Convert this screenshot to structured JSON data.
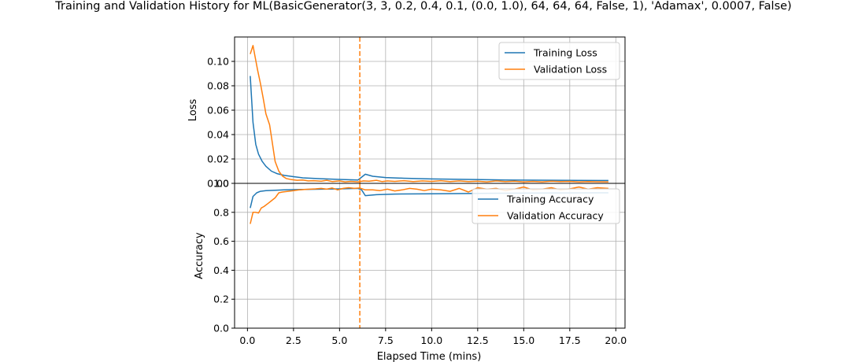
{
  "title": "Training and Validation History for ML(BasicGenerator(3, 3, 0.2, 0.4, 0.1, (0.0, 1.0), 64, 64, 64, False, 1), 'Adamax', 0.0007, False)",
  "colors": {
    "training": "#1f77b4",
    "validation": "#ff7f0e",
    "grid": "#b0b0b0",
    "marker": "#ff7f0e"
  },
  "chart_data": [
    {
      "type": "line",
      "panel": "loss",
      "title": "Training and Validation History for ML(BasicGenerator(3, 3, 0.2, 0.4, 0.1, (0.0, 1.0), 64, 64, 64, False, 1), 'Adamax', 0.0007, False)",
      "xlabel": "",
      "ylabel": "Loss",
      "xlim": [
        -0.7,
        20.5
      ],
      "ylim": [
        0.0,
        0.12
      ],
      "yticks": [
        0.0,
        0.02,
        0.04,
        0.06,
        0.08,
        0.1
      ],
      "ytick_labels": [
        "0.00",
        "0.02",
        "0.04",
        "0.06",
        "0.08",
        "0.10"
      ],
      "grid": true,
      "legend_position": "top-right",
      "vline_x": 6.1,
      "series": [
        {
          "name": "Training Loss",
          "x": [
            0.15,
            0.3,
            0.45,
            0.6,
            0.8,
            1.0,
            1.3,
            1.6,
            2.0,
            2.5,
            3.0,
            4.0,
            5.0,
            6.0,
            6.15,
            6.4,
            6.8,
            7.5,
            8.5,
            10.0,
            12.0,
            14.0,
            16.0,
            18.0,
            19.6
          ],
          "y": [
            0.088,
            0.05,
            0.032,
            0.024,
            0.018,
            0.014,
            0.01,
            0.008,
            0.0065,
            0.0055,
            0.0045,
            0.0038,
            0.0032,
            0.0028,
            0.0045,
            0.0075,
            0.0058,
            0.0048,
            0.0042,
            0.0036,
            0.0032,
            0.0028,
            0.0026,
            0.0024,
            0.0023
          ]
        },
        {
          "name": "Validation Loss",
          "x": [
            0.15,
            0.3,
            0.4,
            0.55,
            0.7,
            0.85,
            1.0,
            1.2,
            1.35,
            1.5,
            1.7,
            1.9,
            2.1,
            2.4,
            2.7,
            3.0,
            3.3,
            3.6,
            4.0,
            4.3,
            4.6,
            5.0,
            5.3,
            5.6,
            6.0,
            6.3,
            6.6,
            7.0,
            7.3,
            7.6,
            8.0,
            8.5,
            9.0,
            9.5,
            10.0,
            10.5,
            11.0,
            11.5,
            12.0,
            12.5,
            13.0,
            13.5,
            14.0,
            14.5,
            15.0,
            15.5,
            16.0,
            16.5,
            17.0,
            17.5,
            18.0,
            18.5,
            19.0,
            19.6
          ],
          "y": [
            0.106,
            0.113,
            0.105,
            0.093,
            0.082,
            0.07,
            0.057,
            0.048,
            0.033,
            0.018,
            0.01,
            0.006,
            0.004,
            0.003,
            0.0025,
            0.0028,
            0.002,
            0.0022,
            0.0018,
            0.0025,
            0.0015,
            0.002,
            0.0012,
            0.0016,
            0.0012,
            0.002,
            0.0018,
            0.0025,
            0.0015,
            0.002,
            0.0016,
            0.0022,
            0.0014,
            0.002,
            0.0016,
            0.0022,
            0.0015,
            0.002,
            0.0014,
            0.0018,
            0.0012,
            0.002,
            0.0015,
            0.0018,
            0.0012,
            0.0016,
            0.0012,
            0.0018,
            0.0014,
            0.0016,
            0.0012,
            0.0015,
            0.0013,
            0.0012
          ]
        }
      ]
    },
    {
      "type": "line",
      "panel": "accuracy",
      "xlabel": "Elapsed Time (mins)",
      "ylabel": "Accuracy",
      "xlim": [
        -0.7,
        20.5
      ],
      "ylim": [
        0.0,
        1.0
      ],
      "xticks": [
        0.0,
        2.5,
        5.0,
        7.5,
        10.0,
        12.5,
        15.0,
        17.5,
        20.0
      ],
      "xtick_labels": [
        "0.0",
        "2.5",
        "5.0",
        "7.5",
        "10.0",
        "12.5",
        "15.0",
        "17.5",
        "20.0"
      ],
      "yticks": [
        0.0,
        0.2,
        0.4,
        0.6,
        0.8,
        1.0
      ],
      "ytick_labels": [
        "0.0",
        "0.2",
        "0.4",
        "0.6",
        "0.8",
        "1.0"
      ],
      "grid": true,
      "legend_position": "top-right",
      "vline_x": 6.1,
      "series": [
        {
          "name": "Training Accuracy",
          "x": [
            0.15,
            0.3,
            0.5,
            0.7,
            1.0,
            1.5,
            2.0,
            3.0,
            4.0,
            5.0,
            6.0,
            6.2,
            6.4,
            7.0,
            8.0,
            10.0,
            12.0,
            14.0,
            16.0,
            18.0,
            19.6
          ],
          "y": [
            0.83,
            0.91,
            0.935,
            0.945,
            0.95,
            0.952,
            0.955,
            0.958,
            0.96,
            0.962,
            0.965,
            0.955,
            0.915,
            0.922,
            0.926,
            0.928,
            0.93,
            0.932,
            0.933,
            0.934,
            0.935
          ]
        },
        {
          "name": "Validation Accuracy",
          "x": [
            0.15,
            0.3,
            0.45,
            0.6,
            0.75,
            0.9,
            1.1,
            1.3,
            1.5,
            1.7,
            1.9,
            2.2,
            2.5,
            2.8,
            3.1,
            3.4,
            3.7,
            4.0,
            4.3,
            4.6,
            4.9,
            5.2,
            5.5,
            5.8,
            6.1,
            6.4,
            6.8,
            7.2,
            7.6,
            8.0,
            8.4,
            8.8,
            9.2,
            9.6,
            10.0,
            10.5,
            11.0,
            11.5,
            12.0,
            12.5,
            13.0,
            13.5,
            14.0,
            14.5,
            15.0,
            15.5,
            16.0,
            16.5,
            17.0,
            17.5,
            18.0,
            18.5,
            19.0,
            19.6
          ],
          "y": [
            0.72,
            0.8,
            0.8,
            0.795,
            0.83,
            0.84,
            0.86,
            0.88,
            0.9,
            0.935,
            0.94,
            0.945,
            0.95,
            0.955,
            0.958,
            0.96,
            0.962,
            0.965,
            0.96,
            0.968,
            0.955,
            0.965,
            0.97,
            0.965,
            0.968,
            0.955,
            0.955,
            0.95,
            0.96,
            0.948,
            0.955,
            0.965,
            0.96,
            0.95,
            0.96,
            0.955,
            0.945,
            0.965,
            0.94,
            0.97,
            0.96,
            0.965,
            0.95,
            0.96,
            0.975,
            0.955,
            0.96,
            0.97,
            0.955,
            0.962,
            0.975,
            0.96,
            0.97,
            0.965
          ]
        }
      ]
    }
  ]
}
